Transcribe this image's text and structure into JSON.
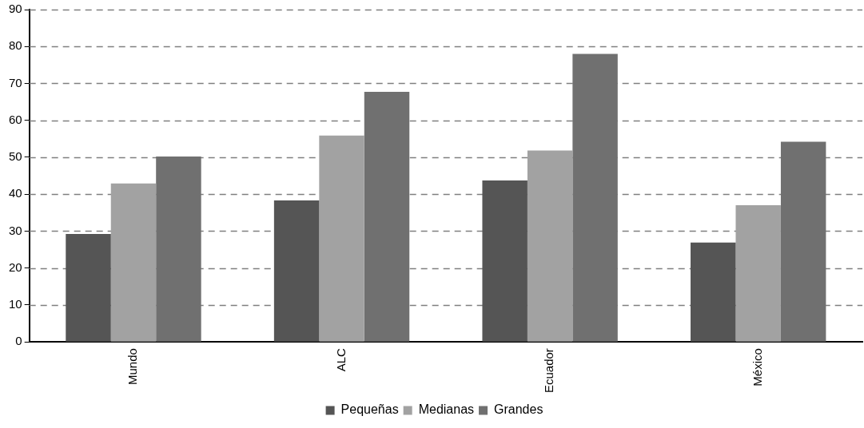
{
  "chart_data": {
    "type": "bar",
    "categories": [
      "Mundo",
      "ALC",
      "Ecuador",
      "México"
    ],
    "series": [
      {
        "name": "Pequeñas",
        "color": "#555555",
        "values": [
          29.2,
          38.3,
          43.7,
          26.9
        ]
      },
      {
        "name": "Medianas",
        "color": "#a2a2a2",
        "values": [
          42.9,
          55.9,
          51.8,
          37.0
        ]
      },
      {
        "name": "Grandes",
        "color": "#707070",
        "values": [
          50.2,
          67.7,
          78.0,
          54.2
        ]
      }
    ],
    "ylim": [
      0,
      90
    ],
    "yticks": [
      0,
      10,
      20,
      30,
      40,
      50,
      60,
      70,
      80,
      90
    ],
    "grid": "y",
    "legend": "bottom"
  }
}
